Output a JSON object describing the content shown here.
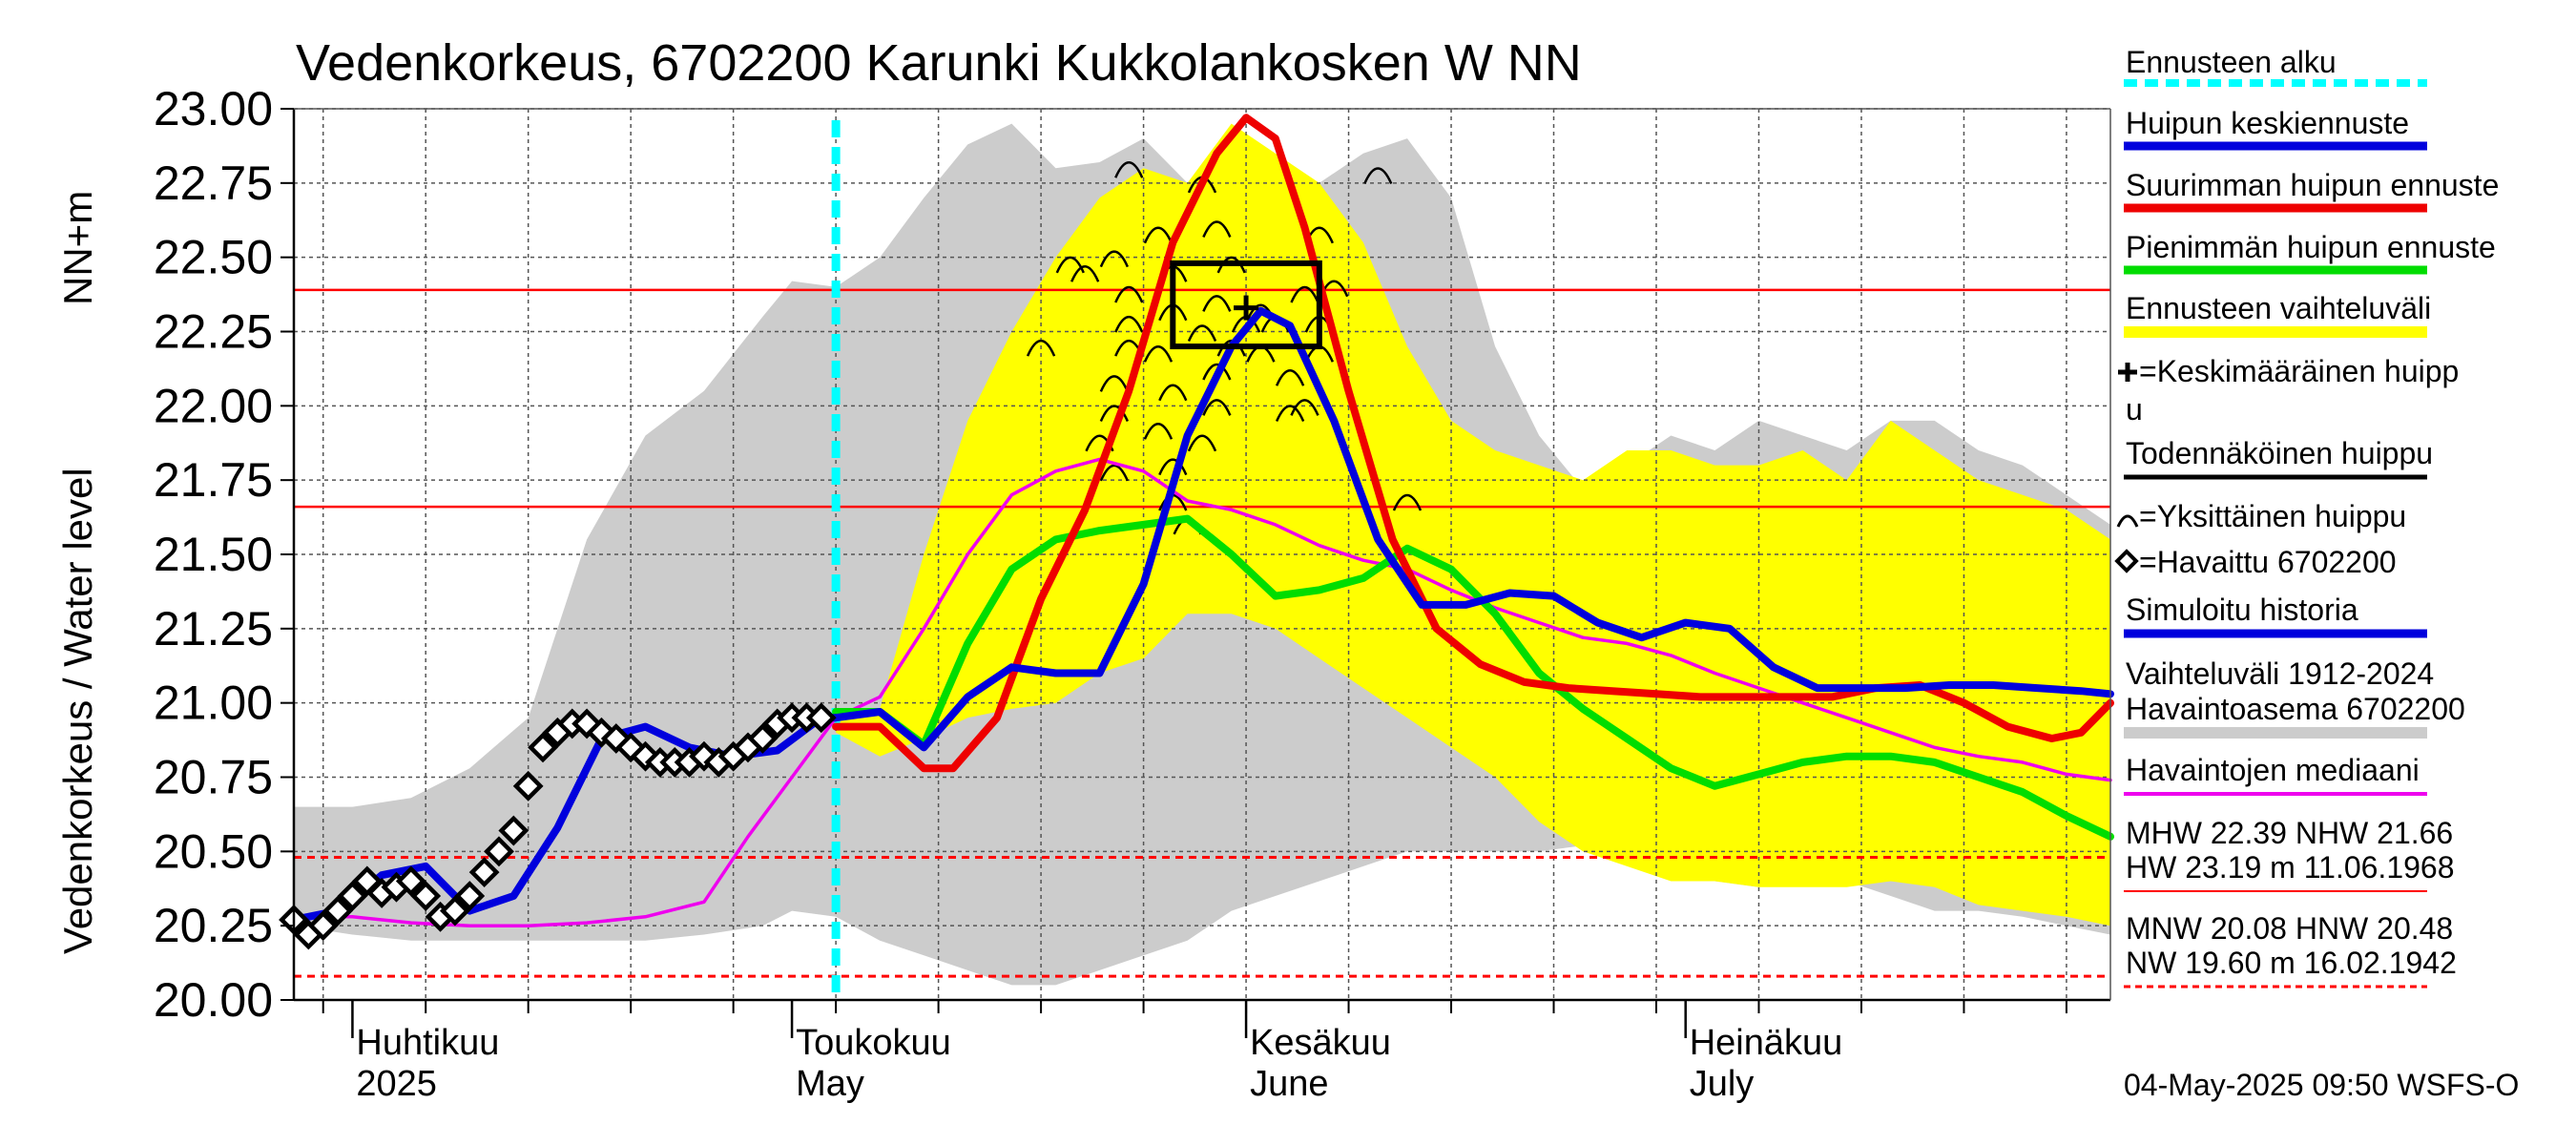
{
  "chart_data": {
    "type": "line",
    "title": "Vedenkorkeus, 6702200 Karunki Kukkolankosken W NN",
    "ylabel_main": "Vedenkorkeus / Water level",
    "ylabel_unit": "NN+m",
    "ylim": [
      20.0,
      23.0
    ],
    "yticks": [
      "20.00",
      "20.25",
      "20.50",
      "20.75",
      "21.00",
      "21.25",
      "21.50",
      "21.75",
      "22.00",
      "22.25",
      "22.50",
      "22.75",
      "23.00"
    ],
    "xlim": [
      "2025-03-28",
      "2025-07-30"
    ],
    "month_ticks": [
      {
        "x": "2025-04-01",
        "fi": "Huhtikuu",
        "en": "2025"
      },
      {
        "x": "2025-05-01",
        "fi": "Toukokuu",
        "en": "May"
      },
      {
        "x": "2025-06-01",
        "fi": "Kesäkuu",
        "en": "June"
      },
      {
        "x": "2025-07-01",
        "fi": "Heinäkuu",
        "en": "July"
      }
    ],
    "grid": true,
    "forecast_start": "2025-05-04",
    "reference_lines": {
      "MHW": 22.39,
      "NHW": 21.66,
      "HNW": 20.48,
      "MNW": 20.08
    },
    "historical_range_grey": {
      "x": [
        "03-28",
        "04-01",
        "04-05",
        "04-09",
        "04-13",
        "04-17",
        "04-21",
        "04-25",
        "04-29",
        "05-01",
        "05-04",
        "05-07",
        "05-10",
        "05-13",
        "05-16",
        "05-19",
        "05-22",
        "05-25",
        "05-28",
        "05-31",
        "06-03",
        "06-06",
        "06-09",
        "06-12",
        "06-15",
        "06-18",
        "06-21",
        "06-24",
        "06-27",
        "06-30",
        "07-03",
        "07-06",
        "07-09",
        "07-12",
        "07-15",
        "07-18",
        "07-21",
        "07-24",
        "07-27",
        "07-30"
      ],
      "upper": [
        20.65,
        20.65,
        20.68,
        20.78,
        20.95,
        21.55,
        21.9,
        22.05,
        22.3,
        22.42,
        22.4,
        22.5,
        22.7,
        22.88,
        22.95,
        22.8,
        22.82,
        22.9,
        22.75,
        22.55,
        22.6,
        22.75,
        22.85,
        22.9,
        22.7,
        22.2,
        21.9,
        21.72,
        21.8,
        21.9,
        21.85,
        21.95,
        21.9,
        21.85,
        21.95,
        21.95,
        21.85,
        21.8,
        21.7,
        21.6
      ],
      "lower": [
        20.25,
        20.22,
        20.2,
        20.2,
        20.2,
        20.2,
        20.2,
        20.22,
        20.25,
        20.3,
        20.28,
        20.2,
        20.15,
        20.1,
        20.05,
        20.05,
        20.1,
        20.15,
        20.2,
        20.3,
        20.35,
        20.4,
        20.45,
        20.5,
        20.5,
        20.5,
        20.5,
        20.52,
        20.52,
        20.48,
        20.4,
        20.38,
        20.4,
        20.4,
        20.35,
        20.3,
        20.3,
        20.28,
        20.25,
        20.22
      ]
    },
    "forecast_range_yellow": {
      "x": [
        "05-04",
        "05-07",
        "05-10",
        "05-13",
        "05-16",
        "05-19",
        "05-22",
        "05-25",
        "05-28",
        "05-31",
        "06-03",
        "06-06",
        "06-09",
        "06-12",
        "06-15",
        "06-18",
        "06-21",
        "06-24",
        "06-27",
        "06-30",
        "07-03",
        "07-06",
        "07-09",
        "07-12",
        "07-15",
        "07-18",
        "07-21",
        "07-24",
        "07-27",
        "07-30"
      ],
      "upper": [
        20.98,
        20.98,
        21.5,
        21.95,
        22.25,
        22.5,
        22.7,
        22.8,
        22.75,
        22.95,
        22.85,
        22.75,
        22.55,
        22.2,
        21.95,
        21.85,
        21.8,
        21.75,
        21.85,
        21.85,
        21.8,
        21.8,
        21.85,
        21.75,
        21.95,
        21.85,
        21.75,
        21.7,
        21.65,
        21.55
      ],
      "lower": [
        20.9,
        20.82,
        20.88,
        20.95,
        20.98,
        21.0,
        21.1,
        21.15,
        21.3,
        21.3,
        21.25,
        21.15,
        21.05,
        20.95,
        20.85,
        20.75,
        20.6,
        20.5,
        20.45,
        20.4,
        20.4,
        20.38,
        20.38,
        20.38,
        20.4,
        20.38,
        20.32,
        20.3,
        20.28,
        20.25
      ]
    },
    "series": [
      {
        "name": "Huipun keskiennuste",
        "color": "#0000dd",
        "x": [
          "05-04",
          "05-07",
          "05-10",
          "05-13",
          "05-16",
          "05-19",
          "05-22",
          "05-25",
          "05-28",
          "05-31",
          "06-02",
          "06-04",
          "06-07",
          "06-10",
          "06-13",
          "06-16",
          "06-19",
          "06-22",
          "06-25",
          "06-28",
          "07-01",
          "07-04",
          "07-07",
          "07-10",
          "07-13",
          "07-16",
          "07-19",
          "07-22",
          "07-25",
          "07-28",
          "07-30"
        ],
        "y": [
          20.95,
          20.97,
          20.85,
          21.02,
          21.12,
          21.1,
          21.1,
          21.4,
          21.9,
          22.2,
          22.32,
          22.27,
          21.95,
          21.55,
          21.33,
          21.33,
          21.37,
          21.36,
          21.27,
          21.22,
          21.27,
          21.25,
          21.12,
          21.05,
          21.05,
          21.05,
          21.06,
          21.06,
          21.05,
          21.04,
          21.03
        ]
      },
      {
        "name": "Suurimman huipun ennuste",
        "color": "#ee0000",
        "x": [
          "05-04",
          "05-07",
          "05-10",
          "05-12",
          "05-15",
          "05-18",
          "05-21",
          "05-24",
          "05-27",
          "05-30",
          "06-01",
          "06-03",
          "06-05",
          "06-08",
          "06-11",
          "06-14",
          "06-17",
          "06-20",
          "06-23",
          "06-26",
          "06-29",
          "07-02",
          "07-05",
          "07-08",
          "07-11",
          "07-14",
          "07-17",
          "07-20",
          "07-23",
          "07-26",
          "07-28",
          "07-30"
        ],
        "y": [
          20.92,
          20.92,
          20.78,
          20.78,
          20.95,
          21.35,
          21.65,
          22.05,
          22.55,
          22.85,
          22.97,
          22.9,
          22.6,
          22.05,
          21.55,
          21.25,
          21.13,
          21.07,
          21.05,
          21.04,
          21.03,
          21.02,
          21.02,
          21.02,
          21.02,
          21.05,
          21.06,
          21.0,
          20.92,
          20.88,
          20.9,
          21.0
        ]
      },
      {
        "name": "Pienimmän huipun ennuste",
        "color": "#00dd00",
        "x": [
          "05-04",
          "05-07",
          "05-10",
          "05-13",
          "05-16",
          "05-19",
          "05-22",
          "05-25",
          "05-28",
          "05-31",
          "06-03",
          "06-06",
          "06-09",
          "06-12",
          "06-15",
          "06-18",
          "06-21",
          "06-24",
          "06-27",
          "06-30",
          "07-03",
          "07-06",
          "07-09",
          "07-12",
          "07-15",
          "07-18",
          "07-21",
          "07-24",
          "07-27",
          "07-30"
        ],
        "y": [
          20.97,
          20.97,
          20.86,
          21.2,
          21.45,
          21.55,
          21.58,
          21.6,
          21.62,
          21.5,
          21.36,
          21.38,
          21.42,
          21.52,
          21.45,
          21.3,
          21.1,
          20.98,
          20.88,
          20.78,
          20.72,
          20.76,
          20.8,
          20.82,
          20.82,
          20.8,
          20.75,
          20.7,
          20.62,
          20.55
        ]
      },
      {
        "name": "Havaintojen mediaani",
        "color": "#ee00ee",
        "x": [
          "03-28",
          "04-01",
          "04-05",
          "04-09",
          "04-13",
          "04-17",
          "04-21",
          "04-25",
          "04-28",
          "05-01",
          "05-04",
          "05-07",
          "05-10",
          "05-13",
          "05-16",
          "05-19",
          "05-22",
          "05-25",
          "05-28",
          "05-31",
          "06-03",
          "06-06",
          "06-09",
          "06-12",
          "06-15",
          "06-18",
          "06-21",
          "06-24",
          "06-27",
          "06-30",
          "07-03",
          "07-06",
          "07-09",
          "07-12",
          "07-15",
          "07-18",
          "07-21",
          "07-24",
          "07-27",
          "07-30"
        ],
        "y": [
          20.28,
          20.28,
          20.26,
          20.25,
          20.25,
          20.26,
          20.28,
          20.33,
          20.55,
          20.75,
          20.95,
          21.02,
          21.25,
          21.5,
          21.7,
          21.78,
          21.82,
          21.78,
          21.68,
          21.65,
          21.6,
          21.53,
          21.48,
          21.45,
          21.38,
          21.32,
          21.27,
          21.22,
          21.2,
          21.16,
          21.1,
          21.05,
          21.0,
          20.95,
          20.9,
          20.85,
          20.82,
          20.8,
          20.76,
          20.74
        ]
      },
      {
        "name": "Simuloitu historia",
        "color": "#0000dd",
        "x": [
          "03-28",
          "03-31",
          "04-03",
          "04-06",
          "04-09",
          "04-12",
          "04-15",
          "04-18",
          "04-21",
          "04-24",
          "04-27",
          "04-30",
          "05-03",
          "05-04"
        ],
        "y": [
          20.27,
          20.3,
          20.42,
          20.45,
          20.3,
          20.35,
          20.58,
          20.88,
          20.92,
          20.85,
          20.82,
          20.84,
          20.95,
          20.95
        ]
      }
    ],
    "observed": {
      "name": "Havaittu 6702200",
      "x": [
        "03-28",
        "03-29",
        "03-30",
        "03-31",
        "04-01",
        "04-02",
        "04-03",
        "04-04",
        "04-05",
        "04-06",
        "04-07",
        "04-08",
        "04-09",
        "04-10",
        "04-11",
        "04-12",
        "04-13",
        "04-14",
        "04-15",
        "04-16",
        "04-17",
        "04-18",
        "04-19",
        "04-20",
        "04-21",
        "04-22",
        "04-23",
        "04-24",
        "04-25",
        "04-26",
        "04-27",
        "04-28",
        "04-29",
        "04-30",
        "05-01",
        "05-02",
        "05-03"
      ],
      "y": [
        20.27,
        20.22,
        20.25,
        20.3,
        20.35,
        20.4,
        20.36,
        20.38,
        20.4,
        20.35,
        20.28,
        20.3,
        20.35,
        20.43,
        20.5,
        20.57,
        20.72,
        20.85,
        20.9,
        20.93,
        20.93,
        20.9,
        20.88,
        20.85,
        20.82,
        20.8,
        20.8,
        20.8,
        20.82,
        20.8,
        20.82,
        20.85,
        20.88,
        20.93,
        20.95,
        20.95,
        20.95
      ]
    },
    "avg_peak": {
      "x": "06-01",
      "y": 22.33
    },
    "likely_peak_box": {
      "x0": "05-27",
      "x1": "06-06",
      "y0": 22.2,
      "y1": 22.48
    },
    "individual_peaks": [
      {
        "x": "05-18",
        "y": 22.2
      },
      {
        "x": "05-20",
        "y": 22.48
      },
      {
        "x": "05-21",
        "y": 22.45
      },
      {
        "x": "05-24",
        "y": 22.8
      },
      {
        "x": "05-23",
        "y": 22.5
      },
      {
        "x": "05-24",
        "y": 22.38
      },
      {
        "x": "05-24",
        "y": 22.28
      },
      {
        "x": "05-24",
        "y": 22.2
      },
      {
        "x": "05-23",
        "y": 22.08
      },
      {
        "x": "05-23",
        "y": 21.98
      },
      {
        "x": "05-22",
        "y": 21.88
      },
      {
        "x": "05-23",
        "y": 21.78
      },
      {
        "x": "05-26",
        "y": 22.58
      },
      {
        "x": "05-27",
        "y": 22.45
      },
      {
        "x": "05-27",
        "y": 22.32
      },
      {
        "x": "05-26",
        "y": 22.18
      },
      {
        "x": "05-27",
        "y": 22.05
      },
      {
        "x": "05-26",
        "y": 21.92
      },
      {
        "x": "05-27",
        "y": 21.8
      },
      {
        "x": "05-27",
        "y": 21.68
      },
      {
        "x": "05-28",
        "y": 21.6
      },
      {
        "x": "05-29",
        "y": 22.75
      },
      {
        "x": "05-30",
        "y": 22.6
      },
      {
        "x": "05-31",
        "y": 22.48
      },
      {
        "x": "05-30",
        "y": 22.35
      },
      {
        "x": "05-29",
        "y": 22.25
      },
      {
        "x": "05-30",
        "y": 22.12
      },
      {
        "x": "05-30",
        "y": 22.0
      },
      {
        "x": "05-29",
        "y": 21.88
      },
      {
        "x": "06-02",
        "y": 22.32
      },
      {
        "x": "06-03",
        "y": 22.28
      },
      {
        "x": "06-04",
        "y": 22.1
      },
      {
        "x": "06-04",
        "y": 21.98
      },
      {
        "x": "06-05",
        "y": 22.38
      },
      {
        "x": "06-06",
        "y": 22.58
      },
      {
        "x": "06-07",
        "y": 22.4
      },
      {
        "x": "06-06",
        "y": 22.28
      },
      {
        "x": "06-06",
        "y": 22.18
      },
      {
        "x": "06-05",
        "y": 22.0
      },
      {
        "x": "06-10",
        "y": 22.78
      },
      {
        "x": "06-12",
        "y": 21.68
      },
      {
        "x": "06-01",
        "y": 22.28
      },
      {
        "x": "06-02",
        "y": 22.18
      },
      {
        "x": "05-31",
        "y": 22.2
      }
    ]
  },
  "legend": {
    "forecast_start": "Ennusteen alku",
    "mean_peak_fc": "Huipun keskiennuste",
    "max_peak_fc": "Suurimman huipun ennuste",
    "min_peak_fc": "Pienimmän huipun ennuste",
    "fc_range": "Ennusteen vaihteluväli",
    "avg_peak_1": "=Keskimääräinen huipp",
    "avg_peak_2": "u",
    "likely_peak": "Todennäköinen huippu",
    "single_peak": "=Yksittäinen huippu",
    "observed": "=Havaittu 6702200",
    "sim_history": "Simuloitu historia",
    "hist_range_1": "Vaihteluväli 1912-2024",
    "hist_range_2": " Havaintoasema 6702200",
    "median": "Havaintojen mediaani",
    "stats_1": "MHW  22.39 NHW  21.66",
    "stats_2": "HW  23.19 m 11.06.1968",
    "stats_3": "MNW  20.08 HNW  20.48",
    "stats_4": "NW  19.60 m 16.02.1942"
  },
  "timestamp": "04-May-2025 09:50 WSFS-O",
  "colors": {
    "grey_band": "#cccccc",
    "yellow_band": "#ffff00",
    "forecast_line": "#00ffff",
    "ref_red": "#ff0000",
    "box": "#000000"
  }
}
